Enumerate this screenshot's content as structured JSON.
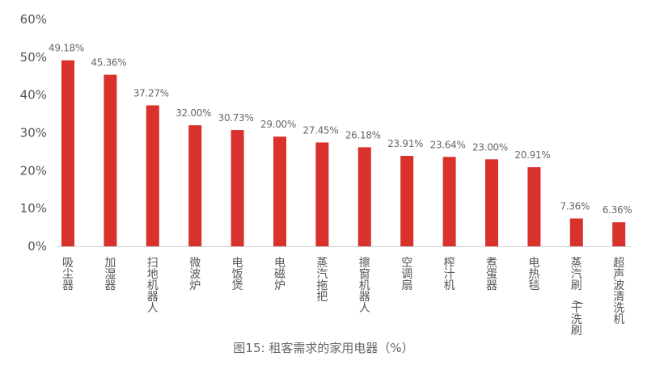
{
  "chart_data": {
    "type": "bar",
    "title": "图15: 租客需求的家用电器（%）",
    "xlabel": "",
    "ylabel": "",
    "ylim": [
      0,
      60
    ],
    "yticks": [
      "0%",
      "10%",
      "20%",
      "30%",
      "40%",
      "50%",
      "60%"
    ],
    "grid": false,
    "bar_color": "#d9322c",
    "categories": [
      "吸尘器",
      "加湿器",
      "扫地机器人",
      "微波炉",
      "电饭煲",
      "电磁炉",
      "蒸汽拖把",
      "擦窗机器人",
      "空调扇",
      "榨汁机",
      "煮蛋器",
      "电热毯",
      "蒸汽刷/干洗刷",
      "超声波清洗机"
    ],
    "values": [
      49.18,
      45.36,
      37.27,
      32.0,
      30.73,
      29.0,
      27.45,
      26.18,
      23.91,
      23.64,
      23.0,
      20.91,
      7.36,
      6.36
    ],
    "value_labels": [
      "49.18%",
      "45.36%",
      "37.27%",
      "32.00%",
      "30.73%",
      "29.00%",
      "27.45%",
      "26.18%",
      "23.91%",
      "23.64%",
      "23.00%",
      "20.91%",
      "7.36%",
      "6.36%"
    ]
  }
}
